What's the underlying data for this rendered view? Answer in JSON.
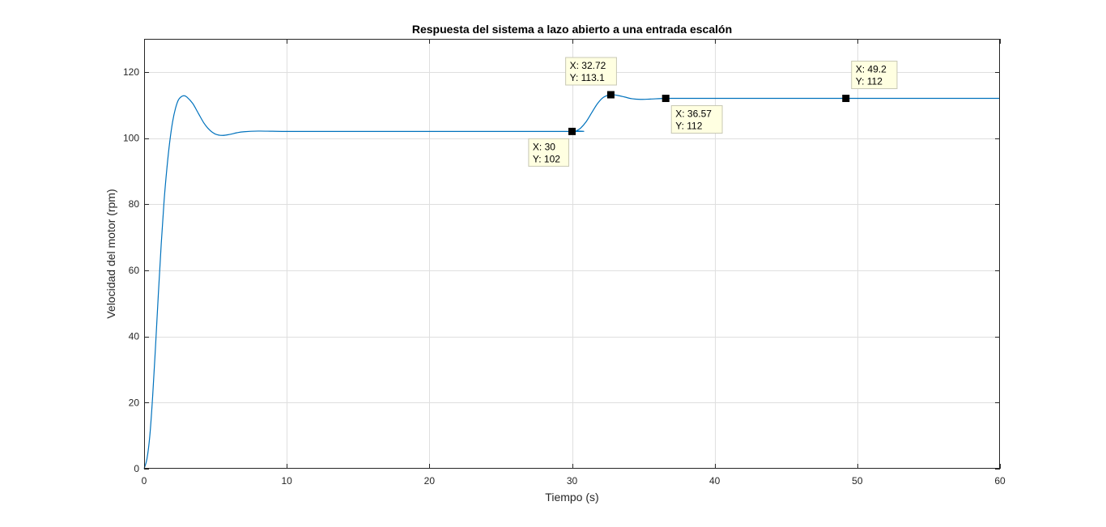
{
  "chart_data": {
    "type": "line",
    "title": "Respuesta del sistema a lazo abierto a una entrada escalón",
    "xlabel": "Tiempo (s)",
    "ylabel": "Velocidad del motor (rpm)",
    "xlim": [
      0,
      60
    ],
    "ylim": [
      0,
      130
    ],
    "xticks": [
      0,
      10,
      20,
      30,
      40,
      50,
      60
    ],
    "yticks": [
      0,
      20,
      40,
      60,
      80,
      100,
      120
    ],
    "grid": true,
    "legend": null,
    "series": [
      {
        "color": "#0072BD",
        "points": [
          [
            0,
            0
          ],
          [
            0.2,
            3
          ],
          [
            0.4,
            10
          ],
          [
            0.6,
            22
          ],
          [
            0.8,
            37
          ],
          [
            1.0,
            53
          ],
          [
            1.2,
            68
          ],
          [
            1.4,
            81
          ],
          [
            1.6,
            91
          ],
          [
            1.8,
            99
          ],
          [
            2.0,
            105
          ],
          [
            2.2,
            109
          ],
          [
            2.4,
            111.5
          ],
          [
            2.6,
            112.5
          ],
          [
            2.8,
            112.8
          ],
          [
            3.0,
            112.4
          ],
          [
            3.4,
            110.5
          ],
          [
            3.8,
            107.5
          ],
          [
            4.2,
            104.5
          ],
          [
            4.6,
            102.4
          ],
          [
            5.0,
            101.2
          ],
          [
            5.5,
            100.8
          ],
          [
            6.0,
            101.1
          ],
          [
            6.5,
            101.6
          ],
          [
            7.0,
            101.9
          ],
          [
            8.0,
            102.1
          ],
          [
            9.0,
            102.05
          ],
          [
            10,
            102
          ],
          [
            12,
            102
          ],
          [
            20,
            102
          ],
          [
            30,
            102
          ],
          [
            30.3,
            102.2
          ],
          [
            30.6,
            103
          ],
          [
            31.0,
            105
          ],
          [
            31.4,
            107.8
          ],
          [
            31.8,
            110.5
          ],
          [
            32.2,
            112.3
          ],
          [
            32.72,
            113.1
          ],
          [
            33.2,
            112.9
          ],
          [
            33.7,
            112.4
          ],
          [
            34.2,
            111.9
          ],
          [
            34.8,
            111.7
          ],
          [
            35.5,
            111.8
          ],
          [
            36.57,
            112
          ],
          [
            38,
            112
          ],
          [
            40,
            112
          ],
          [
            49.2,
            112
          ],
          [
            60,
            112
          ]
        ]
      }
    ],
    "datatips": [
      {
        "x": 30,
        "y": 102,
        "x_text": "X: 30",
        "y_text": "Y: 102",
        "side": "below-left"
      },
      {
        "x": 32.72,
        "y": 113.1,
        "x_text": "X: 32.72",
        "y_text": "Y: 113.1",
        "side": "above-left"
      },
      {
        "x": 36.57,
        "y": 112,
        "x_text": "X: 36.57",
        "y_text": "Y: 112",
        "side": "below-right"
      },
      {
        "x": 49.2,
        "y": 112,
        "x_text": "X: 49.2",
        "y_text": "Y: 112",
        "side": "above-right"
      }
    ]
  }
}
